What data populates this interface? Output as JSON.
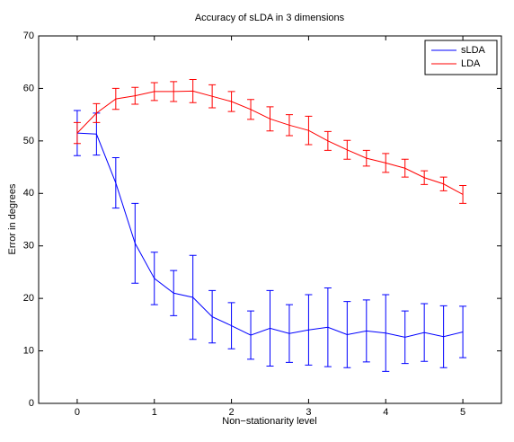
{
  "chart_data": {
    "type": "line",
    "title": "Accuracy of sLDA in 3 dimensions",
    "x_label": "Non−stationarity level",
    "y_label": "Error in degrees",
    "x": [
      0,
      0.25,
      0.5,
      0.75,
      1,
      1.25,
      1.5,
      1.75,
      2,
      2.25,
      2.5,
      2.75,
      3,
      3.25,
      3.5,
      3.75,
      4,
      4.25,
      4.5,
      4.75,
      5
    ],
    "series": [
      {
        "name": "sLDA",
        "color": "#0000ff",
        "values": [
          51.5,
          51.3,
          42,
          30.5,
          23.8,
          21,
          20.2,
          16.5,
          14.8,
          13,
          14.3,
          13.3,
          14,
          14.5,
          13.1,
          13.8,
          13.4,
          12.6,
          13.5,
          12.7,
          13.6
        ],
        "errors": [
          4.3,
          4,
          4.8,
          7.6,
          5,
          4.3,
          8,
          5,
          4.4,
          4.6,
          7.2,
          5.5,
          6.7,
          7.5,
          6.3,
          5.9,
          7.3,
          5,
          5.5,
          5.9,
          4.9
        ]
      },
      {
        "name": "LDA",
        "color": "#ff0000",
        "values": [
          51.5,
          55.3,
          58,
          58.6,
          59.4,
          59.4,
          59.5,
          58.5,
          57.5,
          56,
          54.2,
          53,
          52,
          50,
          48.3,
          46.7,
          45.8,
          44.8,
          43,
          41.8,
          39.8
        ],
        "errors": [
          2,
          1.8,
          2,
          1.6,
          1.7,
          1.9,
          2.2,
          2.2,
          1.9,
          1.9,
          2.3,
          2,
          2.7,
          1.8,
          1.8,
          1.5,
          1.8,
          1.7,
          1.3,
          1.3,
          1.7
        ]
      }
    ],
    "xlim": [
      -0.5,
      5.5
    ],
    "xticks": [
      0,
      1,
      2,
      3,
      4,
      5
    ],
    "ylim": [
      0,
      70
    ],
    "yticks": [
      0,
      10,
      20,
      30,
      40,
      50,
      60,
      70
    ],
    "legend": "upper right"
  }
}
